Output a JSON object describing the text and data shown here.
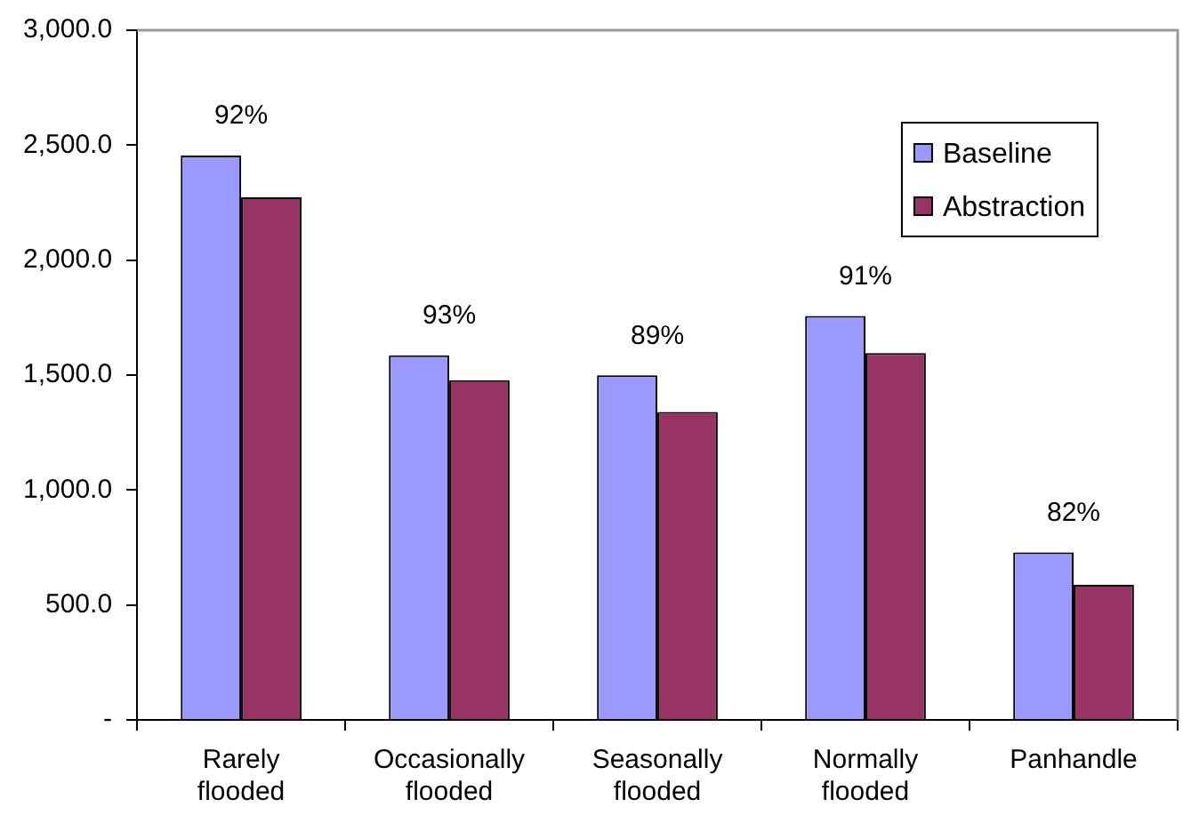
{
  "chart_data": {
    "type": "bar",
    "categories": [
      "Rarely flooded",
      "Occasionally flooded",
      "Seasonally flooded",
      "Normally flooded",
      "Panhandle"
    ],
    "series": [
      {
        "name": "Baseline",
        "color": "#9999ff",
        "values": [
          2455,
          1586,
          1499,
          1757,
          729
        ]
      },
      {
        "name": "Abstraction",
        "color": "#993366",
        "values": [
          2273,
          1478,
          1340,
          1596,
          588
        ]
      }
    ],
    "ylim": [
      0,
      3000
    ],
    "yticks": [
      {
        "value": 0,
        "label": "-"
      },
      {
        "value": 500,
        "label": "500.0"
      },
      {
        "value": 1000,
        "label": "1,000.0"
      },
      {
        "value": 1500,
        "label": "1,500.0"
      },
      {
        "value": 2000,
        "label": "2,000.0"
      },
      {
        "value": 2500,
        "label": "2,500.0"
      },
      {
        "value": 3000,
        "label": "3,000.0"
      }
    ],
    "annotations": [
      "92%",
      "93%",
      "89%",
      "91%",
      "82%"
    ],
    "grid": false,
    "legend": "top right"
  }
}
